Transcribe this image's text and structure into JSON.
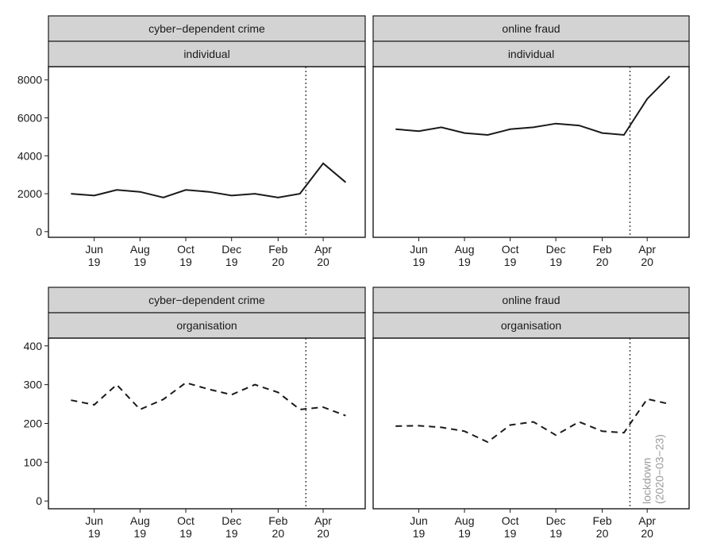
{
  "chart_data": {
    "type": "line",
    "x_ticks": [
      {
        "x": "2019-06",
        "label": "Jun",
        "year": "19"
      },
      {
        "x": "2019-08",
        "label": "Aug",
        "year": "19"
      },
      {
        "x": "2019-10",
        "label": "Oct",
        "year": "19"
      },
      {
        "x": "2019-12",
        "label": "Dec",
        "year": "19"
      },
      {
        "x": "2020-02",
        "label": "Feb",
        "year": "20"
      },
      {
        "x": "2020-04",
        "label": "Apr",
        "year": "20"
      }
    ],
    "x_range": [
      "2019-04-15",
      "2020-06-10"
    ],
    "lockdown": {
      "date": "2020-03-23",
      "label": "lockdown",
      "sublabel": "(2020−03−23)"
    },
    "panels": [
      {
        "strip_top": "cyber−dependent crime",
        "strip_bottom": "individual",
        "ylim": [
          -300,
          8700
        ],
        "y_ticks": [
          0,
          2000,
          4000,
          6000,
          8000
        ],
        "linestyle": "solid",
        "x": [
          "2019-05",
          "2019-06",
          "2019-07",
          "2019-08",
          "2019-09",
          "2019-10",
          "2019-11",
          "2019-12",
          "2020-01",
          "2020-02",
          "2020-03",
          "2020-04",
          "2020-05"
        ],
        "values": [
          2000,
          1900,
          2200,
          2100,
          1800,
          2200,
          2100,
          1900,
          2000,
          1800,
          2000,
          3600,
          2600
        ]
      },
      {
        "strip_top": "online fraud",
        "strip_bottom": "individual",
        "ylim": [
          -300,
          8700
        ],
        "y_ticks": [],
        "linestyle": "solid",
        "x": [
          "2019-05",
          "2019-06",
          "2019-07",
          "2019-08",
          "2019-09",
          "2019-10",
          "2019-11",
          "2019-12",
          "2020-01",
          "2020-02",
          "2020-03",
          "2020-04",
          "2020-05"
        ],
        "values": [
          5400,
          5300,
          5500,
          5200,
          5100,
          5400,
          5500,
          5700,
          5600,
          5200,
          5100,
          7000,
          8200
        ]
      },
      {
        "strip_top": "cyber−dependent crime",
        "strip_bottom": "organisation",
        "ylim": [
          -20,
          420
        ],
        "y_ticks": [
          0,
          100,
          200,
          300,
          400
        ],
        "linestyle": "dashed",
        "x": [
          "2019-05",
          "2019-06",
          "2019-07",
          "2019-08",
          "2019-09",
          "2019-10",
          "2019-11",
          "2019-12",
          "2020-01",
          "2020-02",
          "2020-03",
          "2020-04",
          "2020-05"
        ],
        "values": [
          260,
          248,
          300,
          236,
          262,
          305,
          288,
          274,
          300,
          280,
          236,
          242,
          220
        ]
      },
      {
        "strip_top": "online fraud",
        "strip_bottom": "organisation",
        "ylim": [
          -20,
          420
        ],
        "y_ticks": [],
        "linestyle": "dashed",
        "show_lockdown_label": true,
        "x": [
          "2019-05",
          "2019-06",
          "2019-07",
          "2019-08",
          "2019-09",
          "2019-10",
          "2019-11",
          "2019-12",
          "2020-01",
          "2020-02",
          "2020-03",
          "2020-04",
          "2020-05"
        ],
        "values": [
          193,
          194,
          190,
          180,
          152,
          196,
          204,
          170,
          204,
          180,
          176,
          263,
          250
        ]
      }
    ]
  }
}
